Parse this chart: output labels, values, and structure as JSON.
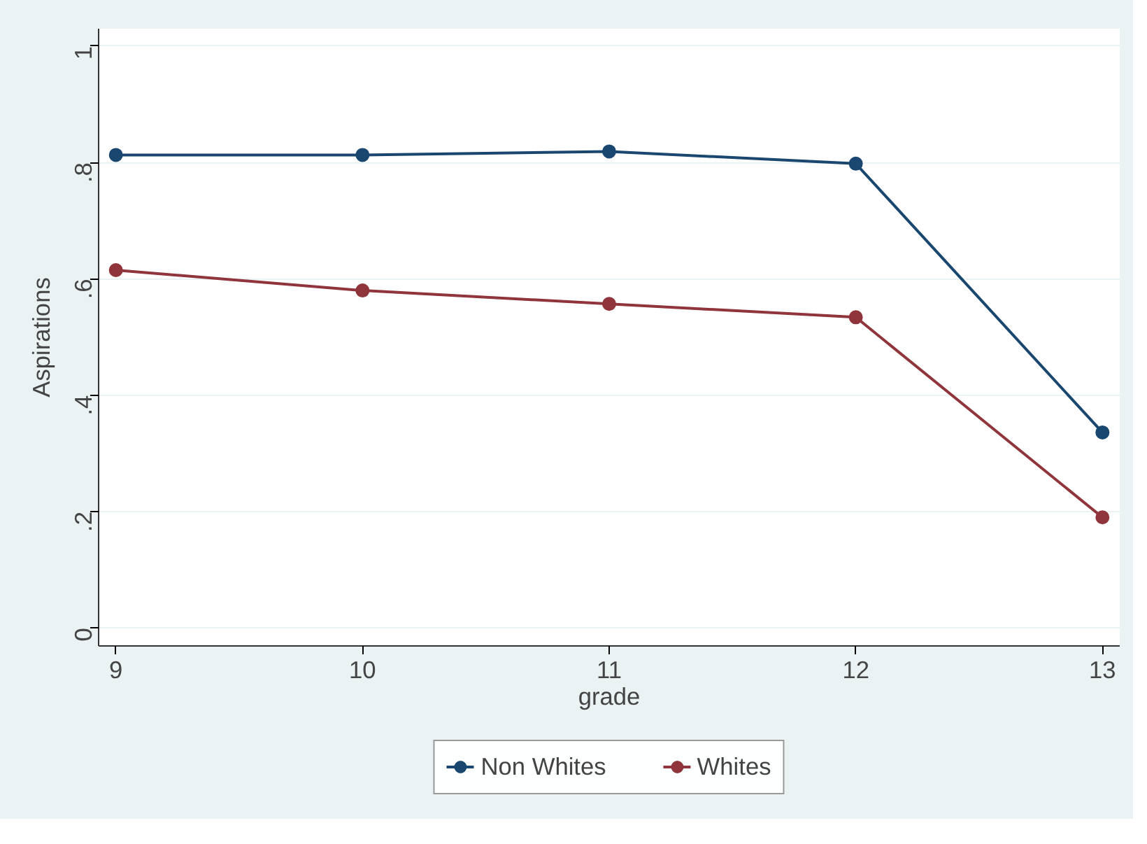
{
  "chart_data": {
    "type": "line",
    "xlabel": "grade",
    "ylabel": "Aspirations",
    "x": [
      9,
      10,
      11,
      12,
      13
    ],
    "series": [
      {
        "name": "Non Whites",
        "color": "#1a476f",
        "values": [
          0.813,
          0.813,
          0.819,
          0.798,
          0.336
        ]
      },
      {
        "name": "Whites",
        "color": "#90353b",
        "values": [
          0.615,
          0.58,
          0.557,
          0.534,
          0.19
        ]
      }
    ],
    "xlim": [
      8.93,
      13.07
    ],
    "ylim": [
      -0.031,
      1.03
    ],
    "xticks": [
      9,
      10,
      11,
      12,
      13
    ],
    "yticks": [
      0,
      {
        "value": 0.2,
        "label": ".2"
      },
      {
        "value": 0.4,
        "label": ".4"
      },
      {
        "value": 0.6,
        "label": ".6"
      },
      {
        "value": 0.8,
        "label": ".8"
      },
      1
    ],
    "grid": "y",
    "legend": "bottom",
    "marker": "circle",
    "line_style": "solid"
  }
}
